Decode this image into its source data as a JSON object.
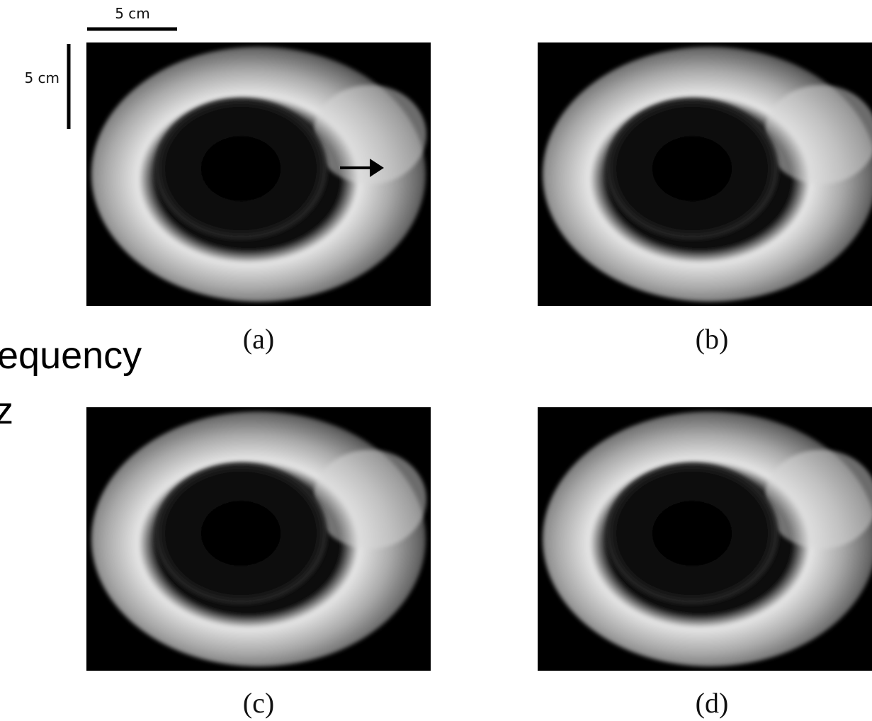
{
  "scale_bars": {
    "horizontal": "5 cm",
    "vertical": "5 cm"
  },
  "side_text": [
    "equency",
    "z"
  ],
  "panels": [
    {
      "label": "(a)"
    },
    {
      "label": "(b)"
    },
    {
      "label": "(c)"
    },
    {
      "label": "(d)"
    }
  ]
}
